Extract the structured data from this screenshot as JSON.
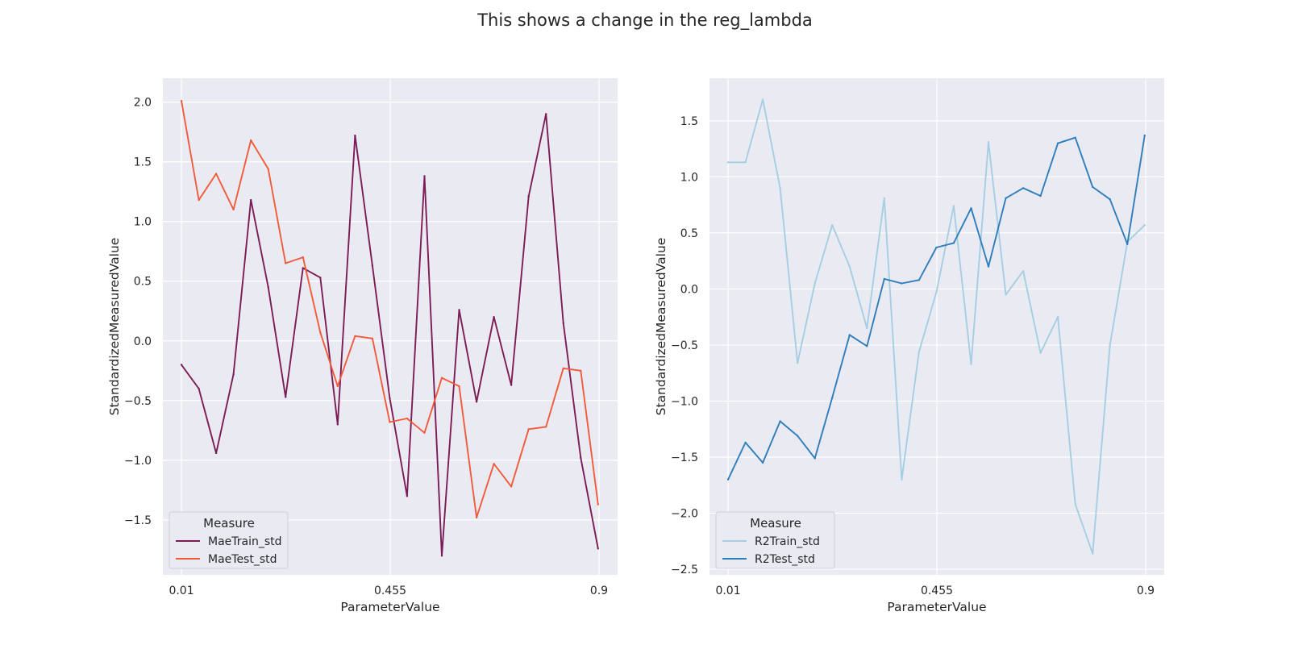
{
  "figure": {
    "title": "This shows a change in the reg_lambda"
  },
  "chart_data": [
    {
      "type": "line",
      "xlabel": "ParameterValue",
      "ylabel": "StandardizedMeasuredValue",
      "xticks": [
        0.01,
        0.455,
        0.9
      ],
      "xtick_labels": [
        "0.01",
        "0.455",
        "0.9"
      ],
      "xlim": [
        -0.0296,
        0.9396
      ],
      "ylim": [
        -1.96,
        2.2
      ],
      "yticks": [
        -1.5,
        -1.0,
        -0.5,
        0.0,
        0.5,
        1.0,
        1.5,
        2.0
      ],
      "ytick_labels": [
        "−1.5",
        "−1.0",
        "−0.5",
        "0.0",
        "0.5",
        "1.0",
        "1.5",
        "2.0"
      ],
      "grid": true,
      "legend": {
        "title": "Measure",
        "placement": "lower-left"
      },
      "x": [
        0.01,
        0.047,
        0.084,
        0.121,
        0.158,
        0.195,
        0.232,
        0.269,
        0.306,
        0.343,
        0.38,
        0.417,
        0.454,
        0.491,
        0.528,
        0.565,
        0.602,
        0.639,
        0.676,
        0.713,
        0.75,
        0.787,
        0.824,
        0.861,
        0.898
      ],
      "series": [
        {
          "name": "MaeTrain_std",
          "color": "#7b1c56",
          "values": [
            -0.2,
            -0.4,
            -0.94,
            -0.28,
            1.18,
            0.45,
            -0.47,
            0.61,
            0.53,
            -0.7,
            1.72,
            0.63,
            -0.48,
            -1.3,
            1.38,
            -1.8,
            0.26,
            -0.51,
            0.2,
            -0.37,
            1.21,
            1.9,
            0.15,
            -0.98,
            -1.74
          ]
        },
        {
          "name": "MaeTest_std",
          "color": "#f15a3b",
          "values": [
            2.01,
            1.18,
            1.4,
            1.1,
            1.68,
            1.44,
            0.65,
            0.7,
            0.07,
            -0.38,
            0.04,
            0.02,
            -0.68,
            -0.65,
            -0.77,
            -0.31,
            -0.38,
            -1.48,
            -1.03,
            -1.22,
            -0.74,
            -0.72,
            -0.23,
            -0.25,
            -1.37
          ]
        }
      ]
    },
    {
      "type": "line",
      "xlabel": "ParameterValue",
      "ylabel": "StandardizedMeasuredValue",
      "xticks": [
        0.01,
        0.455,
        0.9
      ],
      "xtick_labels": [
        "0.01",
        "0.455",
        "0.9"
      ],
      "xlim": [
        -0.0296,
        0.9396
      ],
      "ylim": [
        -2.55,
        1.88
      ],
      "yticks": [
        -2.5,
        -2.0,
        -1.5,
        -1.0,
        -0.5,
        0.0,
        0.5,
        1.0,
        1.5
      ],
      "ytick_labels": [
        "−2.5",
        "−2.0",
        "−1.5",
        "−1.0",
        "−0.5",
        "0.0",
        "0.5",
        "1.0",
        "1.5"
      ],
      "grid": true,
      "legend": {
        "title": "Measure",
        "placement": "lower-left"
      },
      "x": [
        0.01,
        0.047,
        0.084,
        0.121,
        0.158,
        0.195,
        0.232,
        0.269,
        0.306,
        0.343,
        0.38,
        0.417,
        0.454,
        0.491,
        0.528,
        0.565,
        0.602,
        0.639,
        0.676,
        0.713,
        0.75,
        0.787,
        0.824,
        0.861,
        0.898
      ],
      "series": [
        {
          "name": "R2Train_std",
          "color": "#a6cee3",
          "values": [
            1.13,
            1.13,
            1.69,
            0.9,
            -0.66,
            0.05,
            0.57,
            0.2,
            -0.35,
            0.81,
            -1.7,
            -0.56,
            -0.03,
            0.74,
            -0.67,
            1.31,
            -0.05,
            0.16,
            -0.57,
            -0.25,
            -1.92,
            -2.36,
            -0.5,
            0.42,
            0.57
          ]
        },
        {
          "name": "R2Test_std",
          "color": "#2e7ebc",
          "values": [
            -1.7,
            -1.37,
            -1.55,
            -1.18,
            -1.31,
            -1.51,
            -0.97,
            -0.41,
            -0.51,
            0.09,
            0.05,
            0.08,
            0.37,
            0.41,
            0.72,
            0.2,
            0.81,
            0.9,
            0.83,
            1.3,
            1.35,
            0.91,
            0.8,
            0.4,
            1.37
          ]
        }
      ]
    }
  ]
}
